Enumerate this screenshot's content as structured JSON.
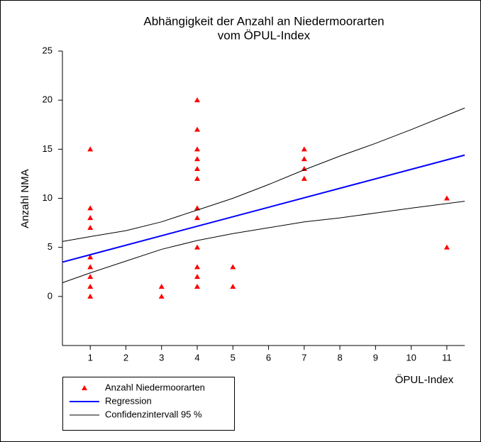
{
  "chart_data": {
    "type": "scatter",
    "title": [
      "Abhängigkeit der Anzahl an Niedermoorarten",
      "vom ÖPUL-Index"
    ],
    "xlabel": "ÖPUL-Index",
    "ylabel": "Anzahl NMA",
    "xlim": [
      0.22,
      11.5
    ],
    "xticks": [
      1,
      2,
      3,
      4,
      5,
      6,
      7,
      8,
      9,
      10,
      11
    ],
    "ylim": [
      -5,
      25
    ],
    "yticks": [
      0,
      5,
      10,
      15,
      20,
      25
    ],
    "legend": "bottom-left",
    "series": [
      {
        "name": "Anzahl Niedermoorarten",
        "type": "scatter",
        "color": "#ff0000",
        "x": [
          1,
          1,
          1,
          1,
          1,
          1,
          1,
          1,
          1,
          3,
          3,
          4,
          4,
          4,
          4,
          4,
          4,
          4,
          4,
          4,
          4,
          4,
          4,
          5,
          5,
          7,
          7,
          7,
          7,
          11,
          11
        ],
        "values": [
          15,
          9,
          8,
          7,
          4,
          3,
          2,
          1,
          0,
          1,
          0,
          20,
          17,
          15,
          14,
          13,
          12,
          9,
          8,
          5,
          3,
          2,
          1,
          3,
          1,
          15,
          14,
          13,
          12,
          10,
          5
        ]
      },
      {
        "name": "Regression",
        "type": "line",
        "color": "#0000ff",
        "x": [
          0.22,
          11.5
        ],
        "values": [
          3.5,
          14.4
        ]
      },
      {
        "name": "Confidenzintervall 95 %",
        "type": "line",
        "color": "#000000",
        "x": [
          0.22,
          1,
          2,
          3,
          4,
          5,
          6,
          7,
          8,
          9,
          10,
          11.5
        ],
        "values": [
          5.6,
          6.1,
          6.7,
          7.6,
          8.8,
          10.0,
          11.4,
          12.9,
          14.3,
          15.6,
          17.0,
          19.2
        ]
      },
      {
        "type": "line",
        "color": "#000000",
        "x": [
          0.22,
          1,
          2,
          3,
          4,
          5,
          6,
          7,
          8,
          9,
          10,
          11.5
        ],
        "values": [
          1.4,
          2.4,
          3.6,
          4.8,
          5.7,
          6.4,
          7.0,
          7.6,
          8.0,
          8.5,
          9.0,
          9.7
        ]
      }
    ]
  }
}
